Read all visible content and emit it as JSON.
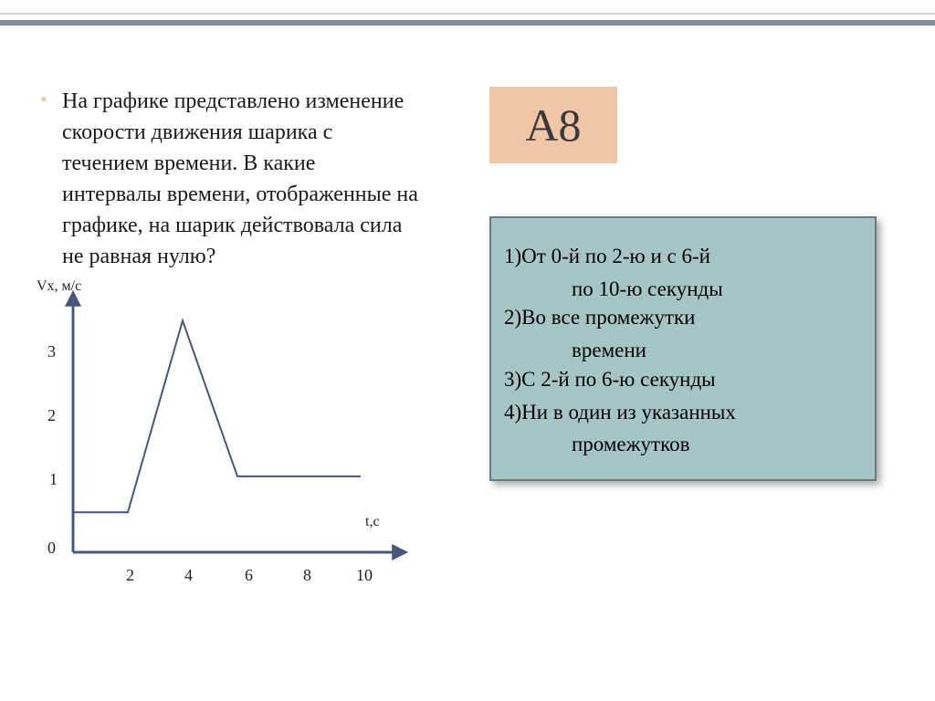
{
  "question": {
    "text": "На графике представлено изменение скорости движения шарика с течением времени. В какие интервалы времени, отображенные на графике, на шарик действовала сила не равная нулю?"
  },
  "badge": {
    "label": "А8"
  },
  "answers": {
    "opt1_a": "1)От 0-й  по 2-ю  и с 6-й",
    "opt1_b": "по 10-ю секунды",
    "opt2_a": "2)Во все промежутки",
    "opt2_b": "времени",
    "opt3": "3)С 2-й по 6-ю секунды",
    "opt4_a": "4)Ни в один из указанных",
    "opt4_b": "промежутков"
  },
  "chart": {
    "type": "line",
    "ylabel": "Vx, м/с",
    "xlabel": "t,с",
    "line_color": "#46567f",
    "axis_color": "#46567f",
    "line_width": 2,
    "axis_width": 3,
    "background_color": "#ffffff",
    "xlim": [
      0,
      11
    ],
    "ylim": [
      0,
      3.2
    ],
    "yticks": [
      0,
      1,
      2,
      3
    ],
    "xticks": [
      2,
      4,
      6,
      8,
      10
    ],
    "ytick0": "0",
    "ytick1": "1",
    "ytick2": "2",
    "ytick3": "3",
    "xtick2": "2",
    "xtick4": "4",
    "xtick6": "6",
    "xtick8": "8",
    "xtick10": "10",
    "points": [
      {
        "t": 0,
        "v": 0.5
      },
      {
        "t": 2,
        "v": 0.5
      },
      {
        "t": 4,
        "v": 2.9
      },
      {
        "t": 6,
        "v": 0.95
      },
      {
        "t": 10.5,
        "v": 0.95
      }
    ]
  },
  "colors": {
    "accent_bar": "#808d9a",
    "bullet": "#e7c8a9",
    "badge_bg": "#f1c6a7",
    "answers_bg": "#a6c5c6",
    "answers_border": "#6f7a7e"
  }
}
